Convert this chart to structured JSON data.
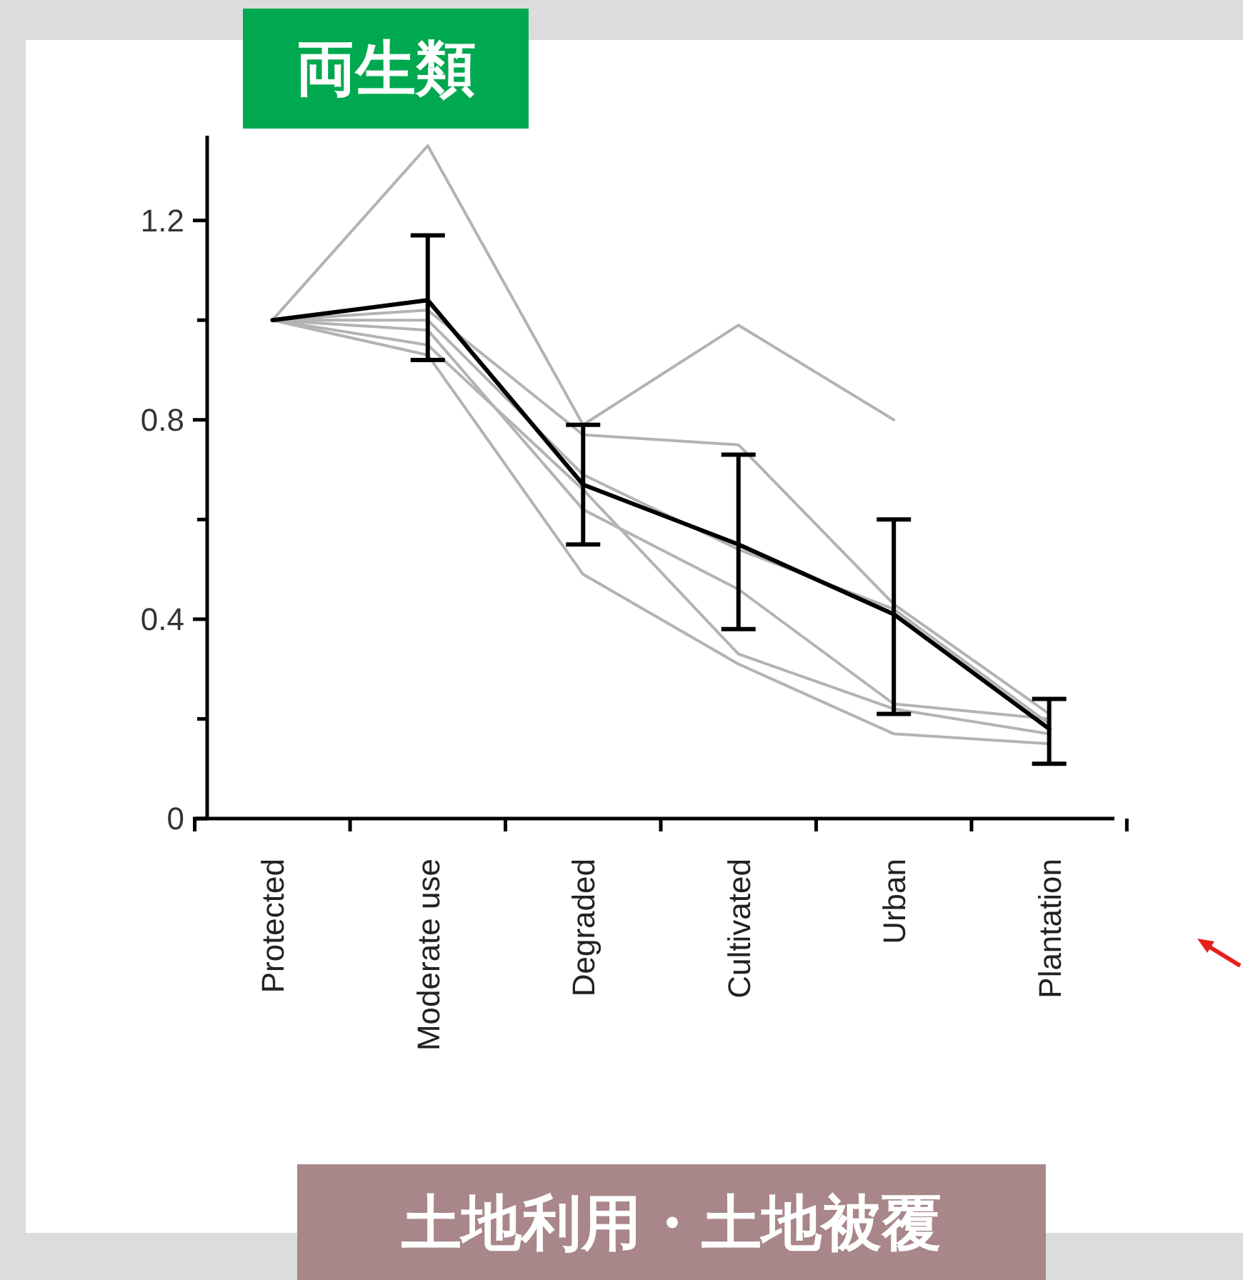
{
  "chart_data": {
    "type": "line",
    "title": "両生類",
    "xlabel": "土地利用・土地被覆",
    "categories": [
      "Protected",
      "Moderate use",
      "Degraded",
      "Cultivated",
      "Urban",
      "Plantation"
    ],
    "series": [
      {
        "color": "#b3b3b3",
        "values": [
          1.0,
          1.35,
          0.79,
          0.99,
          0.8,
          null
        ]
      },
      {
        "color": "#b3b3b3",
        "values": [
          1.0,
          1.02,
          0.77,
          0.75,
          0.43,
          0.21
        ]
      },
      {
        "color": "#b3b3b3",
        "values": [
          1.0,
          0.93,
          0.49,
          0.31,
          0.17,
          0.15
        ]
      },
      {
        "color": "#b3b3b3",
        "values": [
          1.0,
          0.98,
          0.62,
          0.46,
          0.23,
          0.2
        ]
      },
      {
        "color": "#b3b3b3",
        "values": [
          1.0,
          1.0,
          0.69,
          0.54,
          0.42,
          0.19
        ]
      },
      {
        "color": "#b3b3b3",
        "values": [
          1.0,
          0.95,
          0.66,
          0.33,
          0.22,
          0.17
        ]
      },
      {
        "color": "#000000",
        "values": [
          1.0,
          1.04,
          0.67,
          0.55,
          0.41,
          0.18
        ],
        "errors": [
          null,
          [
            0.92,
            1.17
          ],
          [
            0.55,
            0.79
          ],
          [
            0.38,
            0.73
          ],
          [
            0.21,
            0.6
          ],
          [
            0.11,
            0.24
          ]
        ]
      }
    ],
    "ylim": [
      0,
      1.37
    ],
    "yticks": [
      0,
      {
        "value": 0.2,
        "label": null
      },
      0.4,
      {
        "value": 0.6,
        "label": null
      },
      0.8,
      {
        "value": 1.0,
        "label": null
      },
      1.2
    ],
    "grid": false,
    "marker": "none",
    "line_style": "solid"
  }
}
